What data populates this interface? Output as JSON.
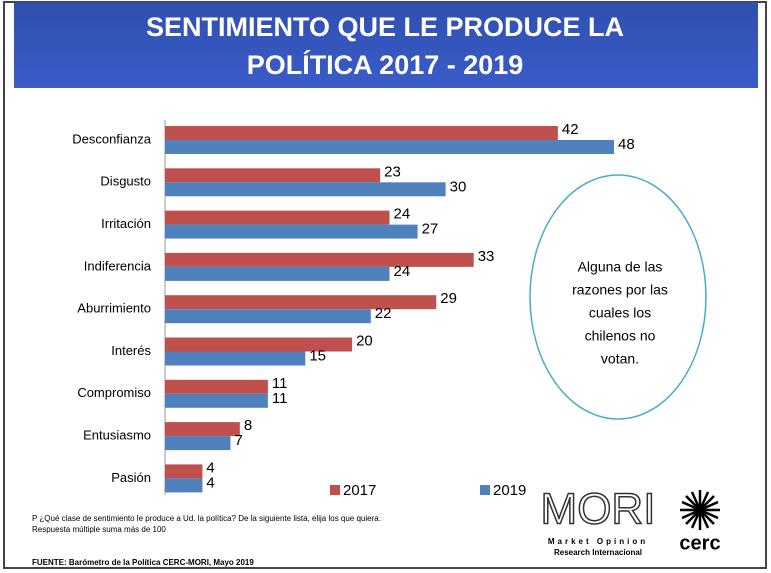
{
  "chart_data": {
    "type": "bar",
    "orientation": "horizontal",
    "title": "SENTIMIENTO QUE LE PRODUCE LA POLÍTICA 2017 - 2019",
    "categories": [
      "Desconfianza",
      "Disgusto",
      "Irritación",
      "Indiferencia",
      "Aburrimiento",
      "Interés",
      "Compromiso",
      "Entusiasmo",
      "Pasión"
    ],
    "series": [
      {
        "name": "2017",
        "color": "#c0504d",
        "values": [
          42,
          23,
          24,
          33,
          29,
          20,
          11,
          8,
          4
        ]
      },
      {
        "name": "2019",
        "color": "#4f81bd",
        "values": [
          48,
          30,
          27,
          24,
          22,
          15,
          11,
          7,
          4
        ]
      }
    ],
    "annotation": [
      "Alguna de las",
      "razones por las",
      "cuales los",
      "chilenos no",
      "votan."
    ],
    "footnotes": [
      "P ¿Qué clase de sentimiento le produce a Ud. la política?  De la siguiente lista, elija los que quiera.",
      "Respuesta múltiple suma más de 100"
    ],
    "source": "FUENTE: Barómetro de la Política CERC-MORI, Mayo 2019"
  },
  "logos": {
    "mori": "MORI",
    "mori_line1": "Market Opinion",
    "mori_line2": "Research Internacional",
    "cerc": "cerc"
  }
}
